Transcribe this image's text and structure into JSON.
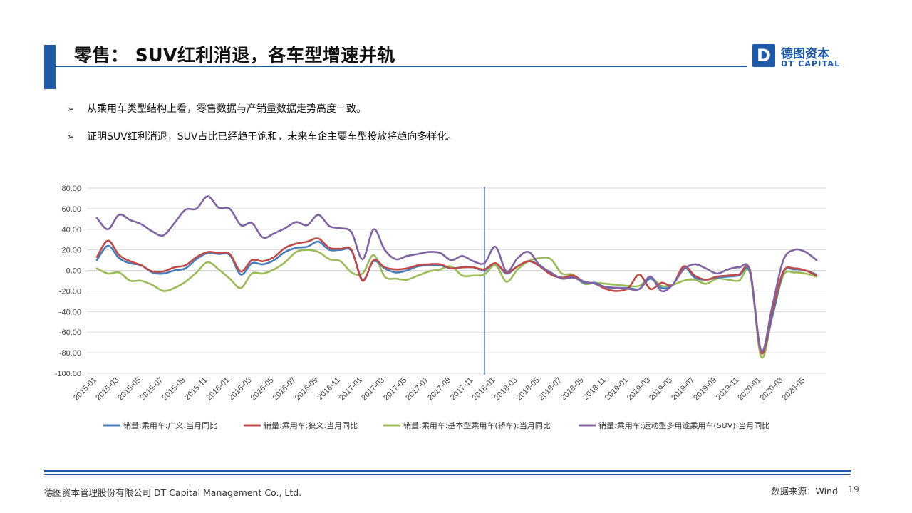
{
  "header": {
    "title": "零售： SUV红利消退，各车型增速并轨",
    "logo_mark": "D",
    "logo_cn": "德图资本",
    "logo_en": "DT CAPITAL"
  },
  "bullets": [
    "从乘用车类型结构上看，零售数据与产销量数据走势高度一致。",
    "证明SUV红利消退，SUV占比已经趋于饱和，未来车企主要车型投放将趋向多样化。"
  ],
  "bullet_marker": "➢",
  "footer": {
    "company": "德图资本管理股份有限公司  DT Capital  Management  Co., Ltd.",
    "source": "数据来源：Wind",
    "page": "19"
  },
  "chart_data": {
    "type": "line",
    "title": "",
    "xlabel": "",
    "ylabel": "",
    "ylim": [
      -100,
      80
    ],
    "yticks": [
      "80.00",
      "60.00",
      "40.00",
      "20.00",
      "0.00",
      "-20.00",
      "-40.00",
      "-60.00",
      "-80.00",
      "-100.00"
    ],
    "x": [
      "2015-01",
      "2015-02",
      "2015-03",
      "2015-04",
      "2015-05",
      "2015-06",
      "2015-07",
      "2015-08",
      "2015-09",
      "2015-10",
      "2015-11",
      "2015-12",
      "2016-01",
      "2016-02",
      "2016-03",
      "2016-04",
      "2016-05",
      "2016-06",
      "2016-07",
      "2016-08",
      "2016-09",
      "2016-10",
      "2016-11",
      "2016-12",
      "2017-01",
      "2017-02",
      "2017-03",
      "2017-04",
      "2017-05",
      "2017-06",
      "2017-07",
      "2017-08",
      "2017-09",
      "2017-10",
      "2017-11",
      "2017-12",
      "2018-01",
      "2018-02",
      "2018-03",
      "2018-04",
      "2018-05",
      "2018-06",
      "2018-07",
      "2018-08",
      "2018-09",
      "2018-10",
      "2018-11",
      "2018-12",
      "2019-01",
      "2019-02",
      "2019-03",
      "2019-04",
      "2019-05",
      "2019-06",
      "2019-07",
      "2019-08",
      "2019-09",
      "2019-10",
      "2019-11",
      "2019-12",
      "2020-01",
      "2020-02",
      "2020-03",
      "2020-04",
      "2020-05",
      "2020-06"
    ],
    "xticks": [
      "2015-01",
      "2015-03",
      "2015-05",
      "2015-07",
      "2015-09",
      "2015-11",
      "2016-01",
      "2016-03",
      "2016-05",
      "2016-07",
      "2016-09",
      "2016-11",
      "2017-01",
      "2017-03",
      "2017-05",
      "2017-07",
      "2017-09",
      "2017-11",
      "2018-01",
      "2018-03",
      "2018-05",
      "2018-07",
      "2018-09",
      "2018-11",
      "2019-01",
      "2019-03",
      "2019-05",
      "2019-07",
      "2019-09",
      "2019-11",
      "2020-01",
      "2020-03",
      "2020-05"
    ],
    "vertical_marker_x": "2017-12",
    "grid": true,
    "legend_position": "bottom",
    "series": [
      {
        "name": "销量:乘用车:广义:当月同比",
        "color": "#4a7ebb",
        "values": [
          10,
          24,
          12,
          7,
          5,
          -2,
          -3,
          0,
          2,
          11,
          17,
          16,
          15,
          -4,
          7,
          6,
          10,
          18,
          22,
          23,
          28,
          20,
          20,
          19,
          -9,
          9,
          2,
          -2,
          0,
          4,
          5,
          5,
          2,
          3,
          3,
          0,
          7,
          -3,
          4,
          9,
          5,
          -3,
          -7,
          -6,
          -12,
          -12,
          -17,
          -17,
          -17,
          -18,
          -8,
          -17,
          -14,
          3,
          -7,
          -9,
          -7,
          -6,
          -5,
          -2,
          -78,
          -45,
          -2,
          1,
          0,
          -4
        ]
      },
      {
        "name": "销量:乘用车:狭义:当月同比",
        "color": "#be4b48",
        "values": [
          13,
          29,
          15,
          9,
          5,
          -1,
          -1,
          3,
          5,
          13,
          18,
          17,
          16,
          -1,
          10,
          9,
          13,
          22,
          26,
          28,
          31,
          22,
          21,
          20,
          -10,
          10,
          3,
          1,
          2,
          5,
          6,
          6,
          2,
          3,
          3,
          1,
          7,
          -2,
          4,
          9,
          4,
          -4,
          -7,
          -5,
          -11,
          -13,
          -18,
          -20,
          -17,
          -4,
          -18,
          -12,
          -14,
          4,
          -5,
          -9,
          -6,
          -5,
          -4,
          0,
          -80,
          -40,
          -1,
          2,
          0,
          -5
        ]
      },
      {
        "name": "销量:乘用车:基本型乘用车(轿车):当月同比",
        "color": "#9bbb59",
        "values": [
          2,
          -3,
          -2,
          -10,
          -10,
          -14,
          -20,
          -17,
          -11,
          -2,
          8,
          1,
          -8,
          -17,
          -3,
          -3,
          1,
          8,
          18,
          20,
          18,
          11,
          9,
          -2,
          -3,
          15,
          -6,
          -8,
          -9,
          -5,
          -1,
          1,
          4,
          -5,
          -5,
          -4,
          5,
          -11,
          1,
          9,
          12,
          11,
          -3,
          -4,
          -13,
          -12,
          -13,
          -14,
          -15,
          -15,
          -7,
          -15,
          -14,
          -10,
          -9,
          -13,
          -8,
          -9,
          -10,
          -3,
          -84,
          -45,
          -5,
          -2,
          -3,
          -6
        ]
      },
      {
        "name": "销量:乘用车:运动型多用途乘用车(SUV):当月同比",
        "color": "#8064a2",
        "values": [
          51,
          40,
          54,
          49,
          45,
          38,
          34,
          46,
          59,
          60,
          72,
          61,
          60,
          44,
          46,
          32,
          36,
          41,
          47,
          44,
          54,
          43,
          41,
          37,
          11,
          40,
          20,
          11,
          14,
          16,
          18,
          17,
          10,
          14,
          9,
          7,
          23,
          -1,
          12,
          18,
          5,
          -2,
          -8,
          -7,
          -11,
          -13,
          -16,
          -17,
          -18,
          -18,
          -6,
          -20,
          -14,
          1,
          6,
          2,
          -3,
          1,
          3,
          -1,
          -78,
          -35,
          10,
          20,
          18,
          10
        ]
      }
    ]
  }
}
